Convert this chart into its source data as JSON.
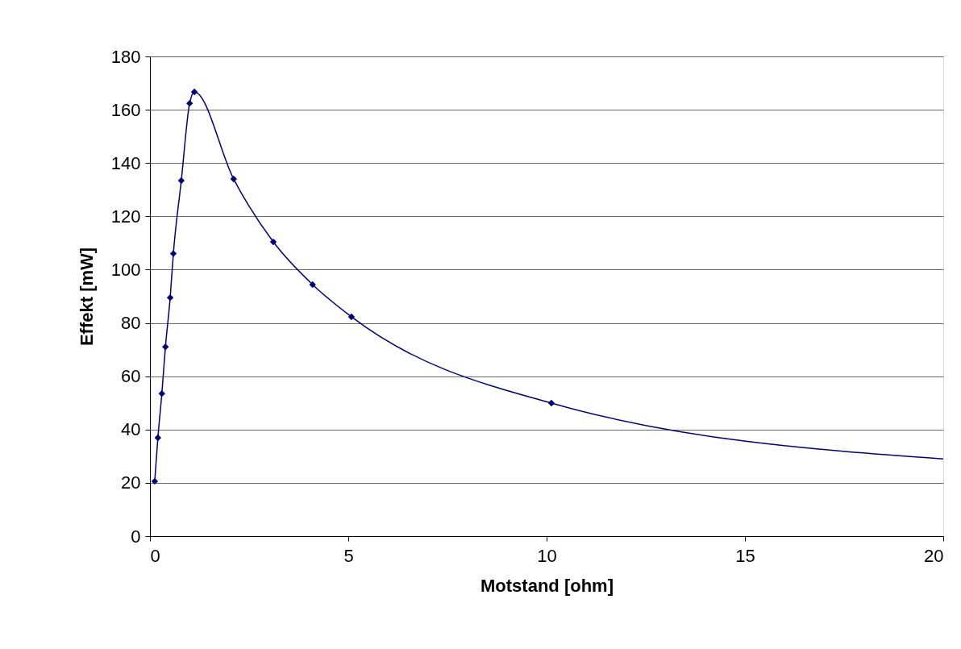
{
  "chart_data": {
    "type": "scatter",
    "xlabel": "Motstand [ohm]",
    "ylabel": "Effekt [mW]",
    "xlim": [
      0,
      20
    ],
    "xticks": [
      0,
      5,
      10,
      15,
      20
    ],
    "ylim": [
      0,
      180
    ],
    "yticks": [
      0,
      20,
      40,
      60,
      80,
      100,
      120,
      140,
      160,
      180
    ],
    "grid": "y",
    "legend": false,
    "series": [
      {
        "type": "line",
        "color": "#000080",
        "marker": "none",
        "line_style": "solid",
        "x": [
          0.12,
          0.2,
          0.3,
          0.39,
          0.51,
          0.59,
          0.79,
          1.0,
          1.12,
          2.11,
          3.11,
          4.1,
          5.08,
          10.12,
          20
        ],
        "values": [
          20.6,
          36.9,
          53.5,
          71,
          89.5,
          106,
          133.4,
          162.4,
          166.7,
          134,
          110.4,
          94.4,
          82.3,
          49.9,
          29
        ]
      },
      {
        "color": "#000080",
        "marker": "diamond",
        "x": [
          0.12,
          0.2,
          0.3,
          0.39,
          0.51,
          0.59,
          0.79,
          1.0,
          1.12,
          2.11,
          3.11,
          4.1,
          5.08,
          10.12
        ],
        "values": [
          20.6,
          36.9,
          53.5,
          71,
          89.5,
          106,
          133.4,
          162.4,
          166.7,
          134,
          110.4,
          94.4,
          82.3,
          49.9
        ]
      }
    ]
  }
}
